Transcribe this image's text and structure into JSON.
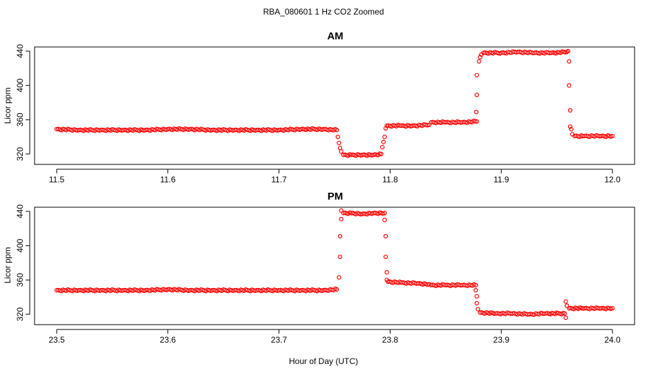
{
  "figure": {
    "title": "RBA_080601  1 Hz CO2 Zoomed",
    "xlabel": "Hour of Day (UTC)"
  },
  "colors": {
    "points": "#ff0000",
    "axes": "#000000"
  },
  "chart_data": [
    {
      "type": "scatter",
      "title": "AM",
      "xlabel": "",
      "ylabel": "Licor ppm",
      "xlim": [
        11.5,
        12.0
      ],
      "ylim": [
        320,
        440
      ],
      "xticks": [
        11.5,
        11.6,
        11.7,
        11.8,
        11.9,
        12.0
      ],
      "xtick_labels": [
        "11.5",
        "11.6",
        "11.7",
        "11.8",
        "11.9",
        "12.0"
      ],
      "yticks": [
        320,
        360,
        400,
        440
      ],
      "ytick_labels": [
        "320",
        "360",
        "400",
        "440"
      ],
      "series": [
        {
          "values": [
            [
              11.5,
              349
            ],
            [
              11.52,
              348
            ],
            [
              11.54,
              348
            ],
            [
              11.56,
              348
            ],
            [
              11.58,
              348
            ],
            [
              11.6,
              349
            ],
            [
              11.62,
              349
            ],
            [
              11.64,
              348
            ],
            [
              11.66,
              348
            ],
            [
              11.68,
              348
            ],
            [
              11.7,
              348
            ],
            [
              11.72,
              349
            ],
            [
              11.74,
              349
            ],
            [
              11.752,
              348
            ],
            [
              11.753,
              340
            ],
            [
              11.754,
              333
            ],
            [
              11.755,
              327
            ],
            [
              11.756,
              323
            ],
            [
              11.758,
              319
            ],
            [
              11.765,
              319
            ],
            [
              11.775,
              319
            ],
            [
              11.785,
              319
            ],
            [
              11.792,
              320
            ],
            [
              11.793,
              328
            ],
            [
              11.794,
              334
            ],
            [
              11.795,
              340
            ],
            [
              11.796,
              350
            ],
            [
              11.797,
              353
            ],
            [
              11.81,
              353
            ],
            [
              11.82,
              353
            ],
            [
              11.835,
              354
            ],
            [
              11.837,
              357
            ],
            [
              11.85,
              357
            ],
            [
              11.865,
              357
            ],
            [
              11.878,
              358
            ],
            [
              11.8775,
              369
            ],
            [
              11.878,
              389
            ],
            [
              11.878,
              412
            ],
            [
              11.88,
              428
            ],
            [
              11.881,
              433
            ],
            [
              11.882,
              436
            ],
            [
              11.884,
              438
            ],
            [
              11.9,
              438
            ],
            [
              11.915,
              439
            ],
            [
              11.93,
              438
            ],
            [
              11.945,
              438
            ],
            [
              11.959,
              439
            ],
            [
              11.96,
              440
            ],
            [
              11.961,
              428
            ],
            [
              11.961,
              400
            ],
            [
              11.962,
              371
            ],
            [
              11.962,
              352
            ],
            [
              11.963,
              349
            ],
            [
              11.964,
              343
            ],
            [
              11.966,
              341
            ],
            [
              11.975,
              341
            ],
            [
              11.99,
              341
            ],
            [
              12.0,
              341
            ]
          ]
        }
      ]
    },
    {
      "type": "scatter",
      "title": "PM",
      "xlabel": "Hour of Day (UTC)",
      "ylabel": "Licor ppm",
      "xlim": [
        23.5,
        24.0
      ],
      "ylim": [
        320,
        440
      ],
      "xticks": [
        23.5,
        23.6,
        23.7,
        23.8,
        23.9,
        24.0
      ],
      "xtick_labels": [
        "23.5",
        "23.6",
        "23.7",
        "23.8",
        "23.9",
        "24.0"
      ],
      "yticks": [
        320,
        360,
        400,
        440
      ],
      "ytick_labels": [
        "320",
        "360",
        "400",
        "440"
      ],
      "series": [
        {
          "values": [
            [
              23.5,
              348
            ],
            [
              23.52,
              348
            ],
            [
              23.54,
              348
            ],
            [
              23.56,
              348
            ],
            [
              23.58,
              348
            ],
            [
              23.6,
              349
            ],
            [
              23.62,
              348
            ],
            [
              23.64,
              348
            ],
            [
              23.66,
              348
            ],
            [
              23.68,
              348
            ],
            [
              23.7,
              348
            ],
            [
              23.72,
              348
            ],
            [
              23.74,
              348
            ],
            [
              23.752,
              349
            ],
            [
              23.754,
              363
            ],
            [
              23.755,
              387
            ],
            [
              23.755,
              411
            ],
            [
              23.756,
              431
            ],
            [
              23.756,
              441
            ],
            [
              23.758,
              438
            ],
            [
              23.765,
              438
            ],
            [
              23.775,
              437
            ],
            [
              23.785,
              438
            ],
            [
              23.795,
              438
            ],
            [
              23.795,
              430
            ],
            [
              23.796,
              411
            ],
            [
              23.796,
              387
            ],
            [
              23.797,
              369
            ],
            [
              23.797,
              360
            ],
            [
              23.798,
              358
            ],
            [
              23.81,
              357
            ],
            [
              23.825,
              356
            ],
            [
              23.835,
              355
            ],
            [
              23.837,
              354
            ],
            [
              23.85,
              354
            ],
            [
              23.865,
              354
            ],
            [
              23.877,
              354
            ],
            [
              23.877,
              348
            ],
            [
              23.878,
              341
            ],
            [
              23.878,
              333
            ],
            [
              23.879,
              326
            ],
            [
              23.881,
              322
            ],
            [
              23.895,
              321
            ],
            [
              23.91,
              321
            ],
            [
              23.925,
              320
            ],
            [
              23.94,
              321
            ],
            [
              23.957,
              321
            ],
            [
              23.958,
              316
            ],
            [
              23.958,
              335
            ],
            [
              23.959,
              330
            ],
            [
              23.961,
              327
            ],
            [
              23.975,
              327
            ],
            [
              23.99,
              327
            ],
            [
              24.0,
              327
            ]
          ]
        }
      ]
    }
  ]
}
